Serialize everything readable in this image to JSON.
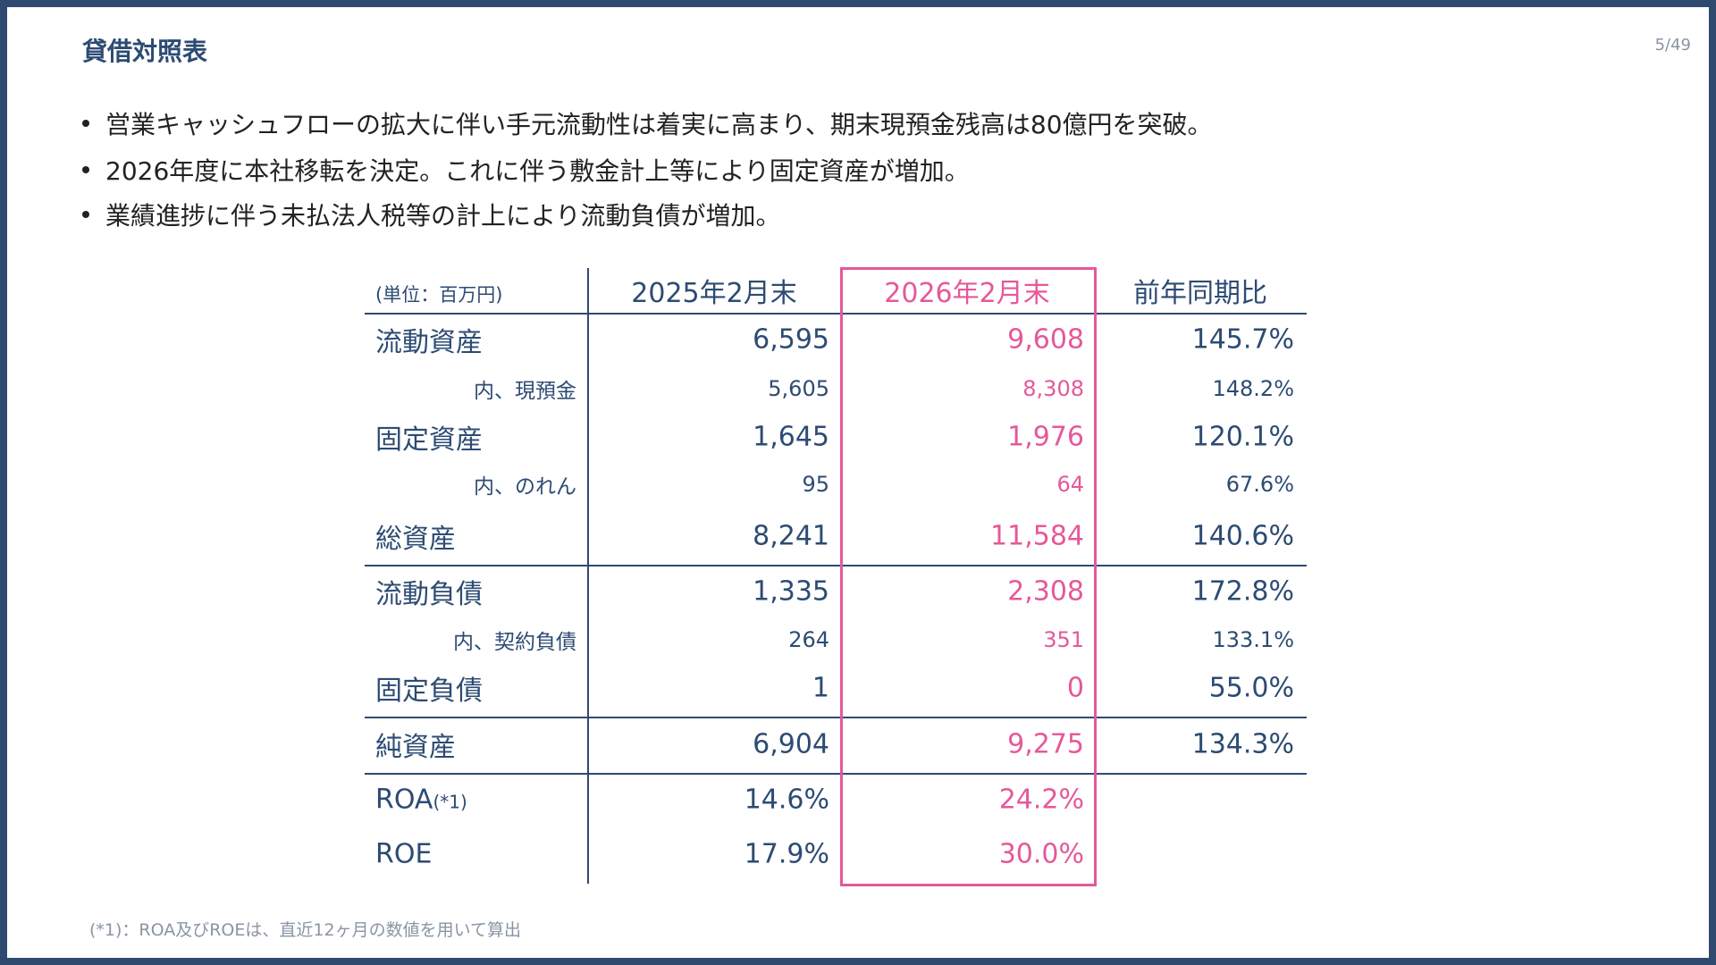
{
  "header": {
    "title": "貸借対照表",
    "page": "5/49"
  },
  "bullets": [
    "営業キャッシュフローの拡大に伴い手元流動性は着実に高まり、期末現預金残高は80億円を突破。",
    "2026年度に本社移転を決定。これに伴う敷金計上等により固定資産が増加。",
    "業績進捗に伴う未払法人税等の計上により流動負債が増加。"
  ],
  "table": {
    "header": [
      "(単位：百万円)",
      "2025年2月末",
      "2026年2月末",
      "前年同期比"
    ],
    "rows": [
      {
        "label": "流動資産",
        "values": [
          "6,595",
          "9,608",
          "145.7%"
        ]
      },
      {
        "label": "内、現預金",
        "values": [
          "5,605",
          "8,308",
          "148.2%"
        ]
      },
      {
        "label": "固定資産",
        "values": [
          "1,645",
          "1,976",
          "120.1%"
        ]
      },
      {
        "label": "内、のれん",
        "values": [
          "95",
          "64",
          "67.6%"
        ]
      },
      {
        "label": "総資産",
        "values": [
          "8,241",
          "11,584",
          "140.6%"
        ]
      },
      {
        "label": "流動負債",
        "values": [
          "1,335",
          "2,308",
          "172.8%"
        ]
      },
      {
        "label": "内、契約負債",
        "values": [
          "264",
          "351",
          "133.1%"
        ]
      },
      {
        "label": "固定負債",
        "values": [
          "1",
          "0",
          "55.0%"
        ]
      },
      {
        "label": "純資産",
        "values": [
          "6,904",
          "9,275",
          "134.3%"
        ]
      },
      {
        "label": "ROA",
        "note": "(*1)",
        "values": [
          "14.6%",
          "24.2%"
        ]
      },
      {
        "label": "ROE",
        "values": [
          "17.9%",
          "30.0%"
        ]
      }
    ]
  },
  "footnote": "(*1)：ROA及びROEは、直近12ヶ月の数値を用いて算出"
}
